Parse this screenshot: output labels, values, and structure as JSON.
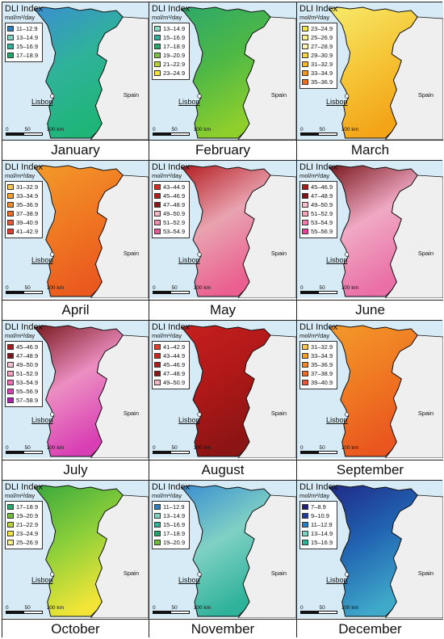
{
  "legend_title": "DLI Index",
  "legend_unit": "mol/m²/day",
  "country_label": "Spain",
  "city_label": "Lisbon",
  "scale_labels": [
    "0",
    "50",
    "100 km"
  ],
  "months": [
    {
      "name": "January",
      "palette": [
        "#3b8fd0",
        "#2fb29a",
        "#1fb578"
      ],
      "classes": [
        {
          "range": "11–12.9",
          "color": "#2b7fbf"
        },
        {
          "range": "13–14.9",
          "color": "#7fd1c4"
        },
        {
          "range": "15–16.9",
          "color": "#2fb29a"
        },
        {
          "range": "17–18.9",
          "color": "#1fa86a"
        }
      ]
    },
    {
      "name": "February",
      "palette": [
        "#2da86a",
        "#4db845",
        "#8fcf2c"
      ],
      "classes": [
        {
          "range": "13–14.9",
          "color": "#8ed8c8"
        },
        {
          "range": "15–16.9",
          "color": "#2fb29a"
        },
        {
          "range": "17–18.9",
          "color": "#25a86a"
        },
        {
          "range": "19–20.9",
          "color": "#7cc241"
        },
        {
          "range": "21–22.9",
          "color": "#b7d433"
        },
        {
          "range": "23–24.9",
          "color": "#f2e23a"
        }
      ]
    },
    {
      "name": "March",
      "palette": [
        "#f7ea6a",
        "#f6c83a",
        "#f3a417"
      ],
      "classes": [
        {
          "range": "23–24.9",
          "color": "#f2e64a"
        },
        {
          "range": "25–26.9",
          "color": "#f7f08c"
        },
        {
          "range": "27–28.9",
          "color": "#fbf3b4"
        },
        {
          "range": "29–30.9",
          "color": "#f7d64a"
        },
        {
          "range": "31–32.9",
          "color": "#f4b52a"
        },
        {
          "range": "33–34.9",
          "color": "#f3961e"
        },
        {
          "range": "35–36.9",
          "color": "#ee6f1f"
        }
      ]
    },
    {
      "name": "April",
      "palette": [
        "#f39a2a",
        "#f07a22",
        "#ea5a1f"
      ],
      "classes": [
        {
          "range": "31–32.9",
          "color": "#f6c64e"
        },
        {
          "range": "33–34.9",
          "color": "#f4a12a"
        },
        {
          "range": "35–36.9",
          "color": "#f08a28"
        },
        {
          "range": "37–38.9",
          "color": "#ec6b25"
        },
        {
          "range": "39–40.9",
          "color": "#e8563a"
        },
        {
          "range": "41–42.9",
          "color": "#e23b2e"
        }
      ]
    },
    {
      "name": "May",
      "palette": [
        "#b31e22",
        "#e9a3b0",
        "#ea5f90"
      ],
      "classes": [
        {
          "range": "43–44.9",
          "color": "#d92b22"
        },
        {
          "range": "45–46.9",
          "color": "#b01b1b"
        },
        {
          "range": "47–48.9",
          "color": "#8d1616"
        },
        {
          "range": "49–50.9",
          "color": "#f3b6c2"
        },
        {
          "range": "51–52.9",
          "color": "#ef8db0"
        },
        {
          "range": "53–54.9",
          "color": "#e9569a"
        }
      ]
    },
    {
      "name": "June",
      "palette": [
        "#7a1a1f",
        "#f0a9c4",
        "#ea6fa6"
      ],
      "classes": [
        {
          "range": "45–46.9",
          "color": "#a81c1c"
        },
        {
          "range": "47–48.9",
          "color": "#7c1515"
        },
        {
          "range": "49–50.9",
          "color": "#f6c2cf"
        },
        {
          "range": "51–52.9",
          "color": "#f2a7bd"
        },
        {
          "range": "53–54.9",
          "color": "#ee7fae"
        },
        {
          "range": "55–56.9",
          "color": "#e6459a"
        }
      ]
    },
    {
      "name": "July",
      "palette": [
        "#7a1a1f",
        "#ec8ec2",
        "#d93fb4"
      ],
      "classes": [
        {
          "range": "45–46.9",
          "color": "#a81c1c"
        },
        {
          "range": "47–48.9",
          "color": "#7c1515"
        },
        {
          "range": "49–50.9",
          "color": "#f6c2cf"
        },
        {
          "range": "51–52.9",
          "color": "#f29fc0"
        },
        {
          "range": "53–54.9",
          "color": "#ea6fb4"
        },
        {
          "range": "55–56.9",
          "color": "#dd43b8"
        },
        {
          "range": "57–58.9",
          "color": "#b31fae"
        }
      ]
    },
    {
      "name": "August",
      "palette": [
        "#c61f1f",
        "#b01818",
        "#8b1414"
      ],
      "classes": [
        {
          "range": "41–42.9",
          "color": "#e93b2b"
        },
        {
          "range": "43–44.9",
          "color": "#cf2421"
        },
        {
          "range": "45–46.9",
          "color": "#b01b1b"
        },
        {
          "range": "47–48.9",
          "color": "#8d1616"
        },
        {
          "range": "49–50.9",
          "color": "#f3b6c2"
        }
      ]
    },
    {
      "name": "September",
      "palette": [
        "#f39a2a",
        "#f07a22",
        "#e9561f"
      ],
      "classes": [
        {
          "range": "31–32.9",
          "color": "#f6c64e"
        },
        {
          "range": "33–34.9",
          "color": "#f4a12a"
        },
        {
          "range": "35–36.9",
          "color": "#f08a28"
        },
        {
          "range": "37–38.9",
          "color": "#ec6b25"
        },
        {
          "range": "39–40.9",
          "color": "#e8563a"
        }
      ]
    },
    {
      "name": "October",
      "palette": [
        "#39a83d",
        "#8ccf3a",
        "#f2e537"
      ],
      "classes": [
        {
          "range": "17–18.9",
          "color": "#25a86a"
        },
        {
          "range": "19–20.9",
          "color": "#6fbd3c"
        },
        {
          "range": "21–22.9",
          "color": "#b9d53a"
        },
        {
          "range": "23–24.9",
          "color": "#f1e53f"
        },
        {
          "range": "25–26.9",
          "color": "#f7f08c"
        }
      ]
    },
    {
      "name": "November",
      "palette": [
        "#3b8fd0",
        "#7fd1c4",
        "#2fb29a"
      ],
      "classes": [
        {
          "range": "11–12.9",
          "color": "#2b7fbf"
        },
        {
          "range": "13–14.9",
          "color": "#7fd1c4"
        },
        {
          "range": "15–16.9",
          "color": "#2fb29a"
        },
        {
          "range": "17–18.9",
          "color": "#1fa86a"
        },
        {
          "range": "19–20.9",
          "color": "#6fbd3c"
        }
      ]
    },
    {
      "name": "December",
      "palette": [
        "#1f2a86",
        "#2164b2",
        "#3fa9c9"
      ],
      "classes": [
        {
          "range": "7–8.9",
          "color": "#1f2170"
        },
        {
          "range": "9–10.9",
          "color": "#1f3c9a"
        },
        {
          "range": "11–12.9",
          "color": "#2b7fbf"
        },
        {
          "range": "13–14.9",
          "color": "#7fd1c4"
        },
        {
          "range": "15–16.9",
          "color": "#2fb29a"
        }
      ]
    }
  ]
}
